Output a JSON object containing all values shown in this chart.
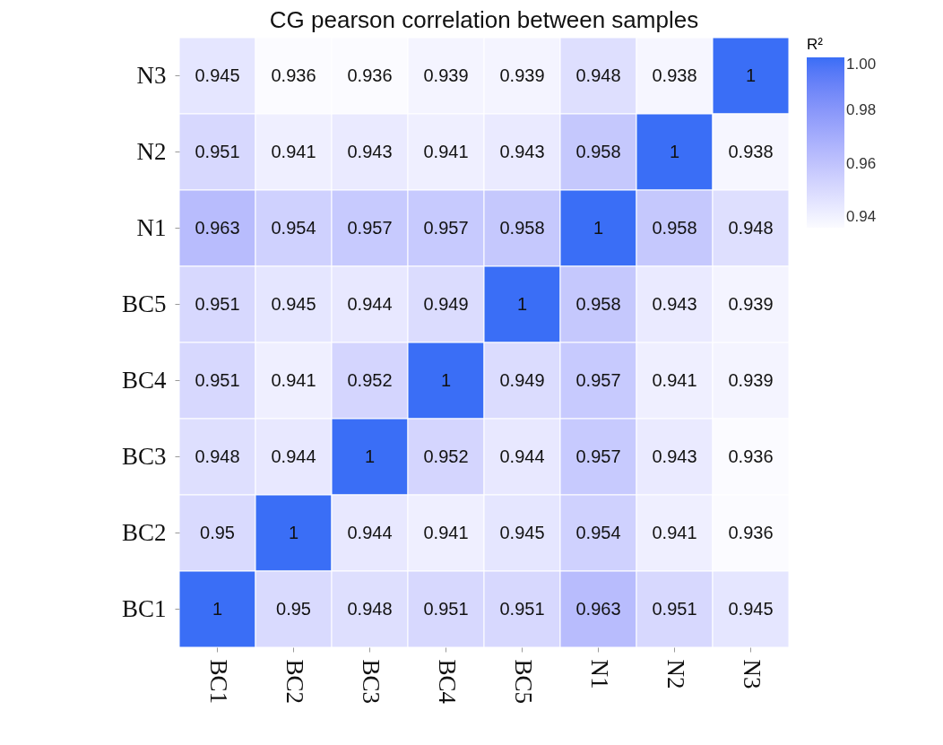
{
  "chart_data": {
    "type": "heatmap",
    "title": "CG pearson correlation between samples",
    "legend_title": "R²",
    "categories": [
      "BC1",
      "BC2",
      "BC3",
      "BC4",
      "BC5",
      "N1",
      "N2",
      "N3"
    ],
    "y_categories": [
      "N3",
      "N2",
      "N1",
      "BC5",
      "BC4",
      "BC3",
      "BC2",
      "BC1"
    ],
    "cells": [
      [
        0.945,
        0.936,
        0.936,
        0.939,
        0.939,
        0.948,
        0.938,
        1
      ],
      [
        0.951,
        0.941,
        0.943,
        0.941,
        0.943,
        0.958,
        1,
        0.938
      ],
      [
        0.963,
        0.954,
        0.957,
        0.957,
        0.958,
        1,
        0.958,
        0.948
      ],
      [
        0.951,
        0.945,
        0.944,
        0.949,
        1,
        0.958,
        0.943,
        0.939
      ],
      [
        0.951,
        0.941,
        0.952,
        1,
        0.949,
        0.957,
        0.941,
        0.939
      ],
      [
        0.948,
        0.944,
        1,
        0.952,
        0.944,
        0.957,
        0.943,
        0.936
      ],
      [
        0.95,
        1,
        0.944,
        0.941,
        0.945,
        0.954,
        0.941,
        0.936
      ],
      [
        1,
        0.95,
        0.948,
        0.951,
        0.951,
        0.963,
        0.951,
        0.945
      ]
    ],
    "clim": [
      0.936,
      1
    ],
    "cticks": [
      0.94,
      0.96,
      0.98,
      {
        "value": 1,
        "label": "1.00"
      }
    ],
    "data_labels": true
  }
}
